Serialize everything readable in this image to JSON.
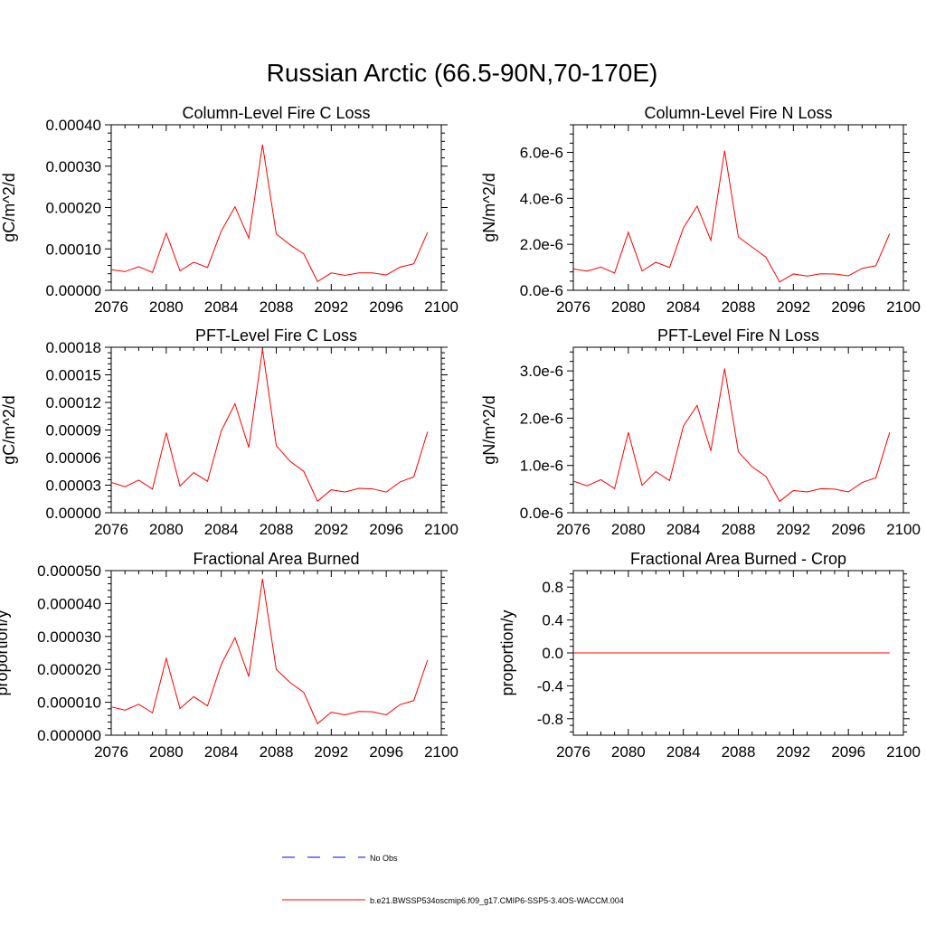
{
  "figure": {
    "title": "Russian Arctic (66.5-90N,70-170E)"
  },
  "legend": {
    "entries": [
      {
        "label": "No Obs",
        "color": "#0000ff",
        "style": "dashed"
      },
      {
        "label": "b.e21.BWSSP534oscmip6.f09_g17.CMIP6-SSP5-3.4OS-WACCM.004",
        "color": "#ff0000",
        "style": "solid"
      }
    ]
  },
  "chart_data": [
    {
      "type": "line",
      "title": "Column-Level Fire C Loss",
      "xlabel": "",
      "ylabel": "gC/m^2/d",
      "xlim": [
        2076,
        2100
      ],
      "ylim": [
        0,
        0.0004
      ],
      "x_ticks": [
        "2076",
        "2080",
        "2084",
        "2088",
        "2092",
        "2096",
        "2100"
      ],
      "y_ticks": [
        "0.00000",
        "0.00010",
        "0.00020",
        "0.00030",
        "0.00040"
      ],
      "y_tick_values": [
        0,
        0.0001,
        0.0002,
        0.0003,
        0.0004
      ],
      "x": [
        2076,
        2077,
        2078,
        2079,
        2080,
        2081,
        2082,
        2083,
        2084,
        2085,
        2086,
        2087,
        2088,
        2089,
        2090,
        2091,
        2092,
        2093,
        2094,
        2095,
        2096,
        2097,
        2098,
        2099
      ],
      "series": [
        {
          "name": "b.e21.BWSSP534oscmip6.f09_g17.CMIP6-SSP5-3.4OS-WACCM.004",
          "color": "#ff0000",
          "values": [
            5e-05,
            4.5e-05,
            5.7e-05,
            4.3e-05,
            0.000138,
            4.7e-05,
            6.8e-05,
            5.5e-05,
            0.000143,
            0.000202,
            0.000126,
            0.000352,
            0.000136,
            0.00011,
            8.8e-05,
            2.1e-05,
            4.2e-05,
            3.6e-05,
            4.2e-05,
            4.2e-05,
            3.7e-05,
            5.6e-05,
            6.4e-05,
            0.00014
          ]
        }
      ]
    },
    {
      "type": "line",
      "title": "Column-Level Fire N Loss",
      "xlabel": "",
      "ylabel": "gN/m^2/d",
      "xlim": [
        2076,
        2100
      ],
      "ylim": [
        0,
        7.2e-06
      ],
      "x_ticks": [
        "2076",
        "2080",
        "2084",
        "2088",
        "2092",
        "2096",
        "2100"
      ],
      "y_ticks": [
        "0.0e-6",
        "2.0e-6",
        "4.0e-6",
        "6.0e-6"
      ],
      "y_tick_values": [
        0,
        2e-06,
        4e-06,
        6e-06
      ],
      "x": [
        2076,
        2077,
        2078,
        2079,
        2080,
        2081,
        2082,
        2083,
        2084,
        2085,
        2086,
        2087,
        2088,
        2089,
        2090,
        2091,
        2092,
        2093,
        2094,
        2095,
        2096,
        2097,
        2098,
        2099
      ],
      "series": [
        {
          "name": "b.e21.BWSSP534oscmip6.f09_g17.CMIP6-SSP5-3.4OS-WACCM.004",
          "color": "#ff0000",
          "values": [
            9.3e-07,
            8.3e-07,
            1.01e-06,
            7.5e-07,
            2.52e-06,
            8.4e-07,
            1.22e-06,
            9.9e-07,
            2.71e-06,
            3.66e-06,
            2.17e-06,
            6.07e-06,
            2.32e-06,
            1.88e-06,
            1.44e-06,
            3.6e-07,
            7.1e-07,
            6.2e-07,
            7.2e-07,
            7.1e-07,
            6.3e-07,
            9.5e-07,
            1.07e-06,
            2.46e-06
          ]
        }
      ]
    },
    {
      "type": "line",
      "title": "PFT-Level Fire C Loss",
      "xlabel": "",
      "ylabel": "gC/m^2/d",
      "xlim": [
        2076,
        2100
      ],
      "ylim": [
        0,
        0.00018
      ],
      "x_ticks": [
        "2076",
        "2080",
        "2084",
        "2088",
        "2092",
        "2096",
        "2100"
      ],
      "y_ticks": [
        "0.00000",
        "0.00003",
        "0.00006",
        "0.00009",
        "0.00012",
        "0.00015",
        "0.00018"
      ],
      "y_tick_values": [
        0,
        3e-05,
        6e-05,
        9e-05,
        0.00012,
        0.00015,
        0.00018
      ],
      "x": [
        2076,
        2077,
        2078,
        2079,
        2080,
        2081,
        2082,
        2083,
        2084,
        2085,
        2086,
        2087,
        2088,
        2089,
        2090,
        2091,
        2092,
        2093,
        2094,
        2095,
        2096,
        2097,
        2098,
        2099
      ],
      "series": [
        {
          "name": "b.e21.BWSSP534oscmip6.f09_g17.CMIP6-SSP5-3.4OS-WACCM.004",
          "color": "#ff0000",
          "values": [
            3.3e-05,
            2.83e-05,
            3.55e-05,
            2.58e-05,
            8.7e-05,
            2.9e-05,
            4.36e-05,
            3.42e-05,
            8.9e-05,
            0.0001185,
            7.1e-05,
            0.000178,
            7.3e-05,
            5.6e-05,
            4.5e-05,
            1.25e-05,
            2.5e-05,
            2.25e-05,
            2.65e-05,
            2.6e-05,
            2.25e-05,
            3.35e-05,
            3.9e-05,
            8.8e-05
          ]
        }
      ]
    },
    {
      "type": "line",
      "title": "PFT-Level Fire N Loss",
      "xlabel": "",
      "ylabel": "gN/m^2/d",
      "xlim": [
        2076,
        2100
      ],
      "ylim": [
        0,
        3.5e-06
      ],
      "x_ticks": [
        "2076",
        "2080",
        "2084",
        "2088",
        "2092",
        "2096",
        "2100"
      ],
      "y_ticks": [
        "0.0e-6",
        "1.0e-6",
        "2.0e-6",
        "3.0e-6"
      ],
      "y_tick_values": [
        0,
        1e-06,
        2e-06,
        3e-06
      ],
      "x": [
        2076,
        2077,
        2078,
        2079,
        2080,
        2081,
        2082,
        2083,
        2084,
        2085,
        2086,
        2087,
        2088,
        2089,
        2090,
        2091,
        2092,
        2093,
        2094,
        2095,
        2096,
        2097,
        2098,
        2099
      ],
      "series": [
        {
          "name": "b.e21.BWSSP534oscmip6.f09_g17.CMIP6-SSP5-3.4OS-WACCM.004",
          "color": "#ff0000",
          "values": [
            6.7e-07,
            5.7e-07,
            7e-07,
            5.1e-07,
            1.7e-06,
            5.8e-07,
            8.7e-07,
            6.8e-07,
            1.83e-06,
            2.27e-06,
            1.31e-06,
            3.05e-06,
            1.29e-06,
            9.7e-07,
            7.7e-07,
            2.4e-07,
            4.7e-07,
            4.4e-07,
            5.1e-07,
            5e-07,
            4.4e-07,
            6.4e-07,
            7.4e-07,
            1.7e-06
          ]
        }
      ]
    },
    {
      "type": "line",
      "title": "Fractional Area Burned",
      "xlabel": "",
      "ylabel": "proportion/y",
      "xlim": [
        2076,
        2100
      ],
      "ylim": [
        0,
        5e-05
      ],
      "x_ticks": [
        "2076",
        "2080",
        "2084",
        "2088",
        "2092",
        "2096",
        "2100"
      ],
      "y_ticks": [
        "0.000000",
        "0.000010",
        "0.000020",
        "0.000030",
        "0.000040",
        "0.000050"
      ],
      "y_tick_values": [
        0,
        1e-05,
        2e-05,
        3e-05,
        4e-05,
        5e-05
      ],
      "x": [
        2076,
        2077,
        2078,
        2079,
        2080,
        2081,
        2082,
        2083,
        2084,
        2085,
        2086,
        2087,
        2088,
        2089,
        2090,
        2091,
        2092,
        2093,
        2094,
        2095,
        2096,
        2097,
        2098,
        2099
      ],
      "series": [
        {
          "name": "b.e21.BWSSP534oscmip6.f09_g17.CMIP6-SSP5-3.4OS-WACCM.004",
          "color": "#ff0000",
          "values": [
            8.6e-06,
            7.6e-06,
            9.4e-06,
            6.8e-06,
            2.33e-05,
            8.1e-06,
            1.17e-05,
            8.9e-06,
            2.15e-05,
            2.96e-05,
            1.78e-05,
            4.75e-05,
            2e-05,
            1.6e-05,
            1.3e-05,
            3.5e-06,
            7e-06,
            6.2e-06,
            7.2e-06,
            7.1e-06,
            6.2e-06,
            9.3e-06,
            1.05e-05,
            2.28e-05
          ]
        }
      ]
    },
    {
      "type": "line",
      "title": "Fractional Area Burned - Crop",
      "xlabel": "",
      "ylabel": "proportion/y",
      "xlim": [
        2076,
        2100
      ],
      "ylim": [
        -1,
        1
      ],
      "x_ticks": [
        "2076",
        "2080",
        "2084",
        "2088",
        "2092",
        "2096",
        "2100"
      ],
      "y_ticks": [
        "-0.8",
        "-0.4",
        "0.0",
        "0.4",
        "0.8"
      ],
      "y_tick_values": [
        -0.8,
        -0.4,
        0,
        0.4,
        0.8
      ],
      "x": [
        2076,
        2077,
        2078,
        2079,
        2080,
        2081,
        2082,
        2083,
        2084,
        2085,
        2086,
        2087,
        2088,
        2089,
        2090,
        2091,
        2092,
        2093,
        2094,
        2095,
        2096,
        2097,
        2098,
        2099
      ],
      "series": [
        {
          "name": "b.e21.BWSSP534oscmip6.f09_g17.CMIP6-SSP5-3.4OS-WACCM.004",
          "color": "#ff0000",
          "values": [
            0,
            0,
            0,
            0,
            0,
            0,
            0,
            0,
            0,
            0,
            0,
            0,
            0,
            0,
            0,
            0,
            0,
            0,
            0,
            0,
            0,
            0,
            0,
            0
          ]
        }
      ]
    }
  ]
}
